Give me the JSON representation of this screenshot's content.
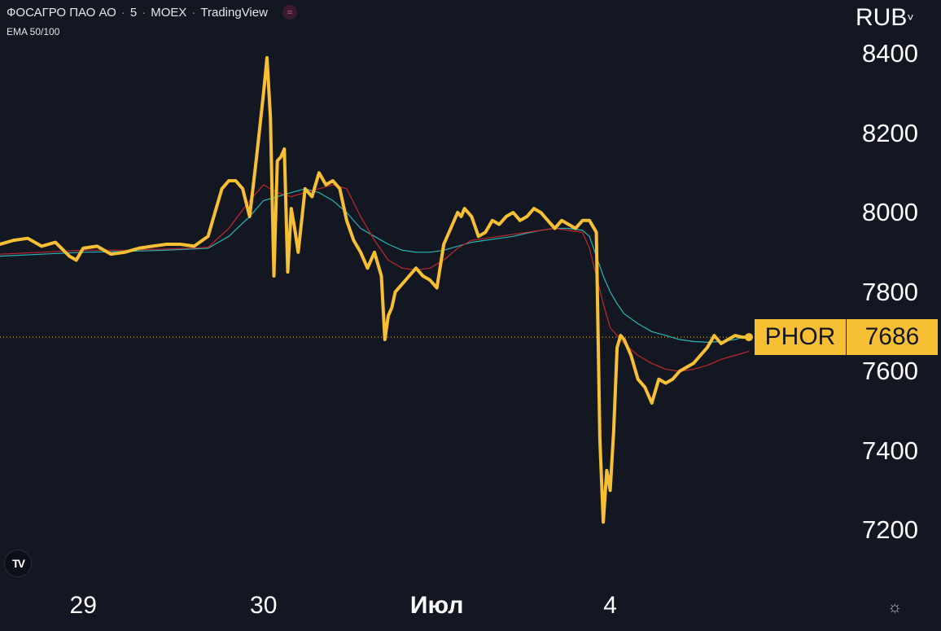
{
  "legend": {
    "name": "ФОСАГРО ПАО АО",
    "interval": "5",
    "exchange": "MOEX",
    "source": "TradingView",
    "indicator": "EMA 50/100"
  },
  "currency": "RUB",
  "price_tag": {
    "symbol": "PHOR",
    "value": "7686"
  },
  "colors": {
    "background": "#131722",
    "price_line": "#f7c034",
    "ema50": "#c0272d",
    "ema100": "#2ab5b5",
    "last_price_line": "#f7c034"
  },
  "icons": {
    "logo": "tradingview-logo-icon",
    "settings": "settings-sun-icon"
  },
  "chart_data": {
    "type": "line",
    "ylabel": "",
    "xlabel": "",
    "ylim": [
      7120,
      8470
    ],
    "y_ticks": [
      8400,
      8200,
      8000,
      7800,
      7600,
      7400,
      7200
    ],
    "x_ticks": [
      {
        "label": "29",
        "x": 12,
        "bold": false
      },
      {
        "label": "30",
        "x": 38,
        "bold": false
      },
      {
        "label": "Июл",
        "x": 63,
        "bold": true
      },
      {
        "label": "4",
        "x": 88,
        "bold": false
      }
    ],
    "x_range": [
      0,
      108
    ],
    "last_price": 7686,
    "series": [
      {
        "name": "PHOR",
        "style": "price",
        "x": [
          0,
          2,
          4,
          6,
          8,
          10,
          11,
          12,
          14,
          16,
          18,
          20,
          22,
          24,
          26,
          28,
          30,
          31,
          32,
          33,
          34,
          35,
          36,
          37,
          38,
          38.5,
          39,
          39.5,
          40,
          40.5,
          41,
          41.5,
          42,
          42.5,
          43,
          43.5,
          44,
          45,
          46,
          47,
          48,
          49,
          50,
          51,
          52,
          53,
          54,
          55,
          55.5,
          56,
          56.5,
          57,
          58,
          59,
          60,
          61,
          62,
          63,
          64,
          65,
          66,
          66.5,
          67,
          68,
          69,
          70,
          71,
          72,
          73,
          74,
          75,
          76,
          77,
          78,
          79,
          80,
          81,
          82,
          83,
          84,
          85,
          86,
          86.5,
          87,
          87.5,
          88,
          88.5,
          89,
          89.5,
          90,
          91,
          92,
          93,
          94,
          95,
          96,
          97,
          98,
          99,
          100,
          101,
          102,
          103,
          104,
          105,
          106,
          107,
          108
        ],
        "y": [
          7920,
          7930,
          7935,
          7915,
          7925,
          7890,
          7880,
          7910,
          7915,
          7895,
          7900,
          7910,
          7915,
          7920,
          7920,
          7915,
          7940,
          8000,
          8060,
          8080,
          8080,
          8060,
          7990,
          8140,
          8300,
          8390,
          8240,
          7840,
          8130,
          8140,
          8160,
          7850,
          8010,
          7960,
          7900,
          7980,
          8060,
          8040,
          8100,
          8070,
          8080,
          8060,
          7980,
          7930,
          7900,
          7860,
          7900,
          7840,
          7680,
          7740,
          7760,
          7800,
          7820,
          7840,
          7860,
          7840,
          7830,
          7810,
          7920,
          7960,
          8000,
          7990,
          8010,
          7990,
          7940,
          7950,
          7980,
          7970,
          7990,
          8000,
          7980,
          7990,
          8010,
          8000,
          7980,
          7960,
          7980,
          7970,
          7960,
          7980,
          7980,
          7950,
          7430,
          7220,
          7350,
          7300,
          7450,
          7660,
          7690,
          7680,
          7640,
          7580,
          7560,
          7520,
          7580,
          7570,
          7580,
          7600,
          7610,
          7620,
          7640,
          7660,
          7690,
          7670,
          7680,
          7690,
          7686,
          7686
        ]
      },
      {
        "name": "EMA 50",
        "style": "ema50",
        "x": [
          0,
          6,
          12,
          18,
          24,
          30,
          33,
          36,
          38,
          40,
          42,
          44,
          46,
          48,
          50,
          52,
          54,
          56,
          58,
          60,
          62,
          64,
          66,
          68,
          70,
          72,
          74,
          76,
          78,
          80,
          82,
          84,
          85,
          86,
          87,
          88,
          89,
          90,
          92,
          94,
          96,
          98,
          100,
          102,
          104,
          106,
          108
        ],
        "y": [
          7895,
          7900,
          7905,
          7905,
          7908,
          7912,
          7960,
          8030,
          8070,
          8050,
          8040,
          8050,
          8060,
          8070,
          8060,
          7990,
          7930,
          7880,
          7860,
          7855,
          7860,
          7880,
          7910,
          7930,
          7935,
          7940,
          7945,
          7950,
          7955,
          7960,
          7955,
          7950,
          7910,
          7840,
          7770,
          7710,
          7690,
          7670,
          7640,
          7620,
          7605,
          7600,
          7605,
          7615,
          7630,
          7640,
          7650
        ]
      },
      {
        "name": "EMA 100",
        "style": "ema100",
        "x": [
          0,
          6,
          12,
          18,
          24,
          30,
          33,
          36,
          38,
          40,
          42,
          44,
          46,
          48,
          50,
          52,
          54,
          56,
          58,
          60,
          62,
          64,
          66,
          68,
          70,
          72,
          74,
          76,
          78,
          80,
          82,
          84,
          85,
          86,
          87,
          88,
          89,
          90,
          92,
          94,
          96,
          98,
          100,
          102,
          104,
          106,
          108
        ],
        "y": [
          7890,
          7895,
          7900,
          7902,
          7905,
          7910,
          7940,
          7990,
          8030,
          8040,
          8050,
          8060,
          8050,
          8030,
          8000,
          7960,
          7940,
          7920,
          7905,
          7900,
          7900,
          7905,
          7915,
          7925,
          7930,
          7935,
          7940,
          7948,
          7955,
          7960,
          7960,
          7955,
          7940,
          7890,
          7840,
          7800,
          7770,
          7745,
          7720,
          7700,
          7690,
          7680,
          7675,
          7673,
          7675,
          7680,
          7690
        ]
      }
    ]
  }
}
